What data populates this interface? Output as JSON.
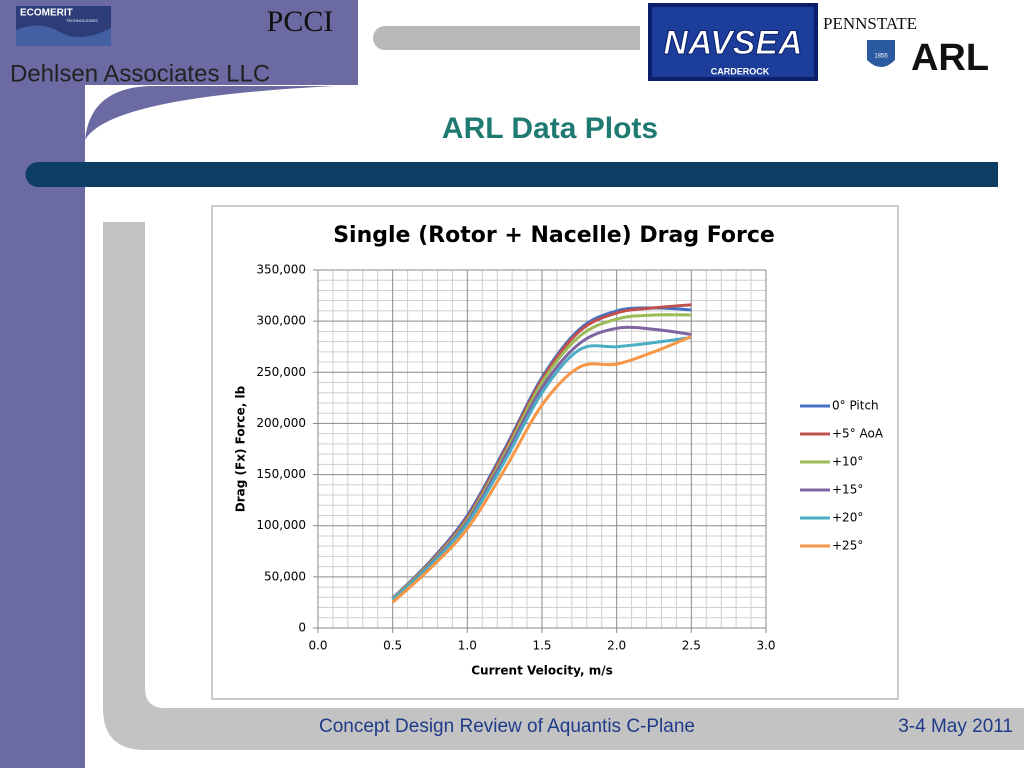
{
  "slide": {
    "organization": "Dehlsen Associates LLC",
    "title": "ARL Data Plots",
    "footer": "Concept Design Review of Aquantis C-Plane",
    "date": "3-4 May 2011",
    "logos": {
      "ecomerit": "ECOMERIT",
      "ecomerit_sub": "TECHNOLOGIES",
      "pcci": "PCCI",
      "navsea": "NAVSEA",
      "navsea_sub": "CARDEROCK",
      "pennstate": "PENNSTATE",
      "pennstate_year": "1855",
      "arl": "ARL"
    }
  },
  "chart_data": {
    "type": "line",
    "title": "Single (Rotor + Nacelle) Drag Force",
    "x_label": "Current Velocity, m/s",
    "y_label": "Drag (Fx) Force, lb",
    "x": [
      0.5,
      0.75,
      1.0,
      1.25,
      1.5,
      1.75,
      2.0,
      2.25,
      2.5
    ],
    "series": [
      {
        "name": "0° Pitch",
        "color": "#4472c4",
        "values": [
          29000,
          65000,
          110000,
          175000,
          245000,
          292000,
          310000,
          313000,
          311000
        ]
      },
      {
        "name": "+5° AoA",
        "color": "#c0504d",
        "values": [
          28000,
          64000,
          108000,
          173000,
          243000,
          290000,
          308000,
          313000,
          316000
        ]
      },
      {
        "name": "+10°",
        "color": "#9bbb59",
        "values": [
          28000,
          63000,
          106000,
          170000,
          240000,
          285000,
          302000,
          306000,
          306000
        ]
      },
      {
        "name": "+15°",
        "color": "#8064a2",
        "values": [
          27000,
          62000,
          104000,
          167000,
          235000,
          278000,
          293000,
          292000,
          287000
        ]
      },
      {
        "name": "+20°",
        "color": "#4bacc6",
        "values": [
          27000,
          61000,
          102000,
          163000,
          230000,
          272000,
          275000,
          279000,
          284000
        ]
      },
      {
        "name": "+25°",
        "color": "#f79646",
        "values": [
          25000,
          58000,
          97000,
          155000,
          218000,
          255000,
          258000,
          270000,
          285000
        ]
      }
    ],
    "xlim": [
      0,
      3
    ],
    "ylim": [
      0,
      350000
    ],
    "xticks": [
      {
        "value": 0,
        "label": "0.0"
      },
      {
        "value": 0.5,
        "label": "0.5"
      },
      {
        "value": 1,
        "label": "1.0"
      },
      {
        "value": 1.5,
        "label": "1.5"
      },
      {
        "value": 2,
        "label": "2.0"
      },
      {
        "value": 2.5,
        "label": "2.5"
      },
      {
        "value": 3,
        "label": "3.0"
      }
    ],
    "yticks": [
      0,
      {
        "value": 50000,
        "label": "50,000"
      },
      {
        "value": 100000,
        "label": "100,000"
      },
      {
        "value": 150000,
        "label": "150,000"
      },
      {
        "value": 200000,
        "label": "200,000"
      },
      {
        "value": 250000,
        "label": "250,000"
      },
      {
        "value": 300000,
        "label": "300,000"
      },
      {
        "value": 350000,
        "label": "350,000"
      }
    ],
    "grid": true,
    "minor_grid": true,
    "legend": "right"
  }
}
